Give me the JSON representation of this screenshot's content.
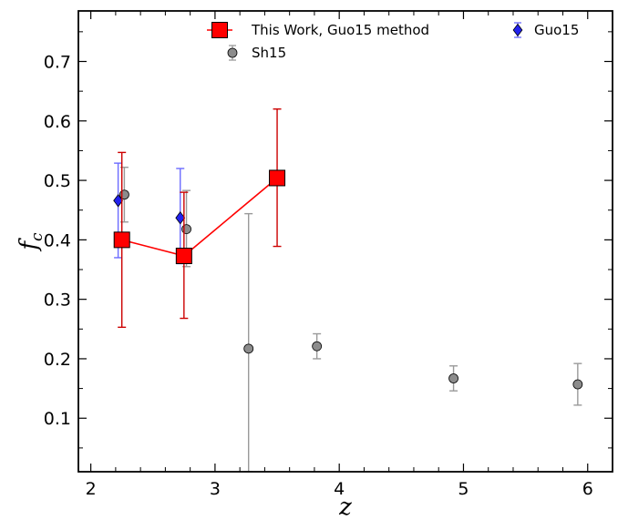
{
  "chart_data": {
    "type": "scatter",
    "xlabel": "z",
    "ylabel": "f_c",
    "xlim": [
      1.9,
      6.2
    ],
    "ylim": [
      0.01,
      0.785
    ],
    "x_ticks": [
      2,
      3,
      4,
      5,
      6
    ],
    "y_ticks": [
      0.1,
      0.2,
      0.3,
      0.4,
      0.5,
      0.6,
      0.7
    ],
    "grid": false,
    "legend": "top-right",
    "series": [
      {
        "name": "This Work, Guo15 method",
        "marker": "square",
        "connected": true,
        "color": "#ff0000",
        "errcolor": "#cc0000",
        "points": [
          {
            "x": 2.25,
            "y": 0.4,
            "err_low": 0.147,
            "err_high": 0.147
          },
          {
            "x": 2.75,
            "y": 0.373,
            "err_low": 0.105,
            "err_high": 0.107
          },
          {
            "x": 3.5,
            "y": 0.504,
            "err_low": 0.115,
            "err_high": 0.116
          }
        ]
      },
      {
        "name": "Guo15",
        "marker": "diamond",
        "connected": false,
        "color": "#2222ee",
        "errcolor": "#6b6bff",
        "points": [
          {
            "x": 2.22,
            "y": 0.466,
            "err_low": 0.096,
            "err_high": 0.063
          },
          {
            "x": 2.72,
            "y": 0.437,
            "err_low": 0.077,
            "err_high": 0.083
          }
        ]
      },
      {
        "name": "Sh15",
        "marker": "circle",
        "connected": false,
        "color": "#8c8c8c",
        "errcolor": "#9a9a9a",
        "points": [
          {
            "x": 2.27,
            "y": 0.476,
            "err_low": 0.046,
            "err_high": 0.046
          },
          {
            "x": 2.77,
            "y": 0.418,
            "err_low": 0.063,
            "err_high": 0.065
          },
          {
            "x": 3.27,
            "y": 0.217,
            "err_low": 0.207,
            "err_high": 0.227
          },
          {
            "x": 3.82,
            "y": 0.221,
            "err_low": 0.021,
            "err_high": 0.021
          },
          {
            "x": 4.92,
            "y": 0.167,
            "err_low": 0.021,
            "err_high": 0.021
          },
          {
            "x": 5.92,
            "y": 0.157,
            "err_low": 0.035,
            "err_high": 0.035
          }
        ]
      }
    ]
  }
}
